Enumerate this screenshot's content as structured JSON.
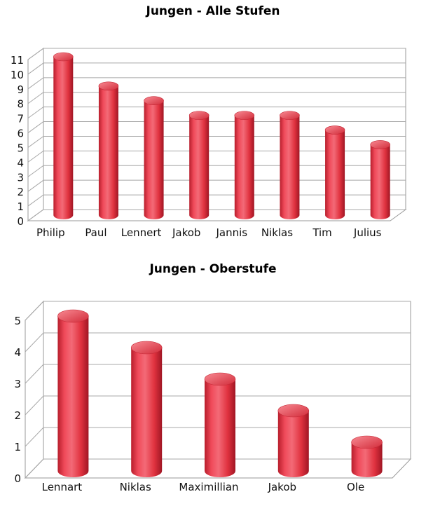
{
  "chart_data": [
    {
      "type": "bar",
      "title": "Jungen - Alle Stufen",
      "categories": [
        "Philip",
        "Paul",
        "Lennert",
        "Jakob",
        "Jannis",
        "Niklas",
        "Tim",
        "Julius"
      ],
      "values": [
        11,
        9,
        8,
        7,
        7,
        7,
        6,
        5
      ],
      "ylim": [
        0,
        11
      ],
      "yticks": [
        0,
        1,
        2,
        3,
        4,
        5,
        6,
        7,
        8,
        9,
        10,
        11
      ],
      "xlabel": "",
      "ylabel": "",
      "grid": true,
      "bar_color": "#e8394a",
      "style": "3d-cylinder"
    },
    {
      "type": "bar",
      "title": "Jungen - Oberstufe",
      "categories": [
        "Lennart",
        "Niklas",
        "Maximillian",
        "Jakob",
        "Ole"
      ],
      "values": [
        5,
        4,
        3,
        2,
        1
      ],
      "ylim": [
        0,
        5
      ],
      "yticks": [
        0,
        1,
        2,
        3,
        4,
        5
      ],
      "xlabel": "",
      "ylabel": "",
      "grid": true,
      "bar_color": "#e8394a",
      "style": "3d-cylinder"
    }
  ]
}
